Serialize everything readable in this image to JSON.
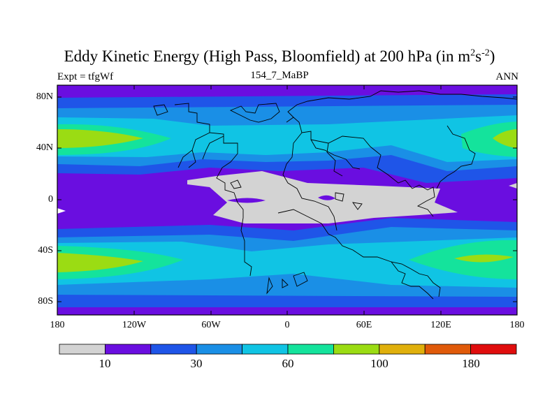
{
  "title": {
    "main": "Eddy Kinetic Energy (High Pass, Bloomfield) at 200 hPa (in m",
    "sup1": "2",
    "s": "s",
    "sup2": "-2",
    "close": ")"
  },
  "subtitle": "154_7_MaBP",
  "left_label": "Expt = tfgWf",
  "right_label": "ANN",
  "map": {
    "lat_ticks": [
      "80N",
      "40N",
      "0",
      "40S",
      "80S"
    ],
    "lon_ticks": [
      "180",
      "120W",
      "60W",
      "0",
      "60E",
      "120E",
      "180"
    ]
  },
  "colorbar": {
    "colors": [
      "#d3d3d3",
      "#6a0ee0",
      "#1f55e8",
      "#1a8fe6",
      "#10c4e4",
      "#14e39c",
      "#9bdc13",
      "#e0b00c",
      "#e05a0a",
      "#e00d0d"
    ],
    "labels": [
      "10",
      "30",
      "60",
      "100",
      "180"
    ]
  }
}
